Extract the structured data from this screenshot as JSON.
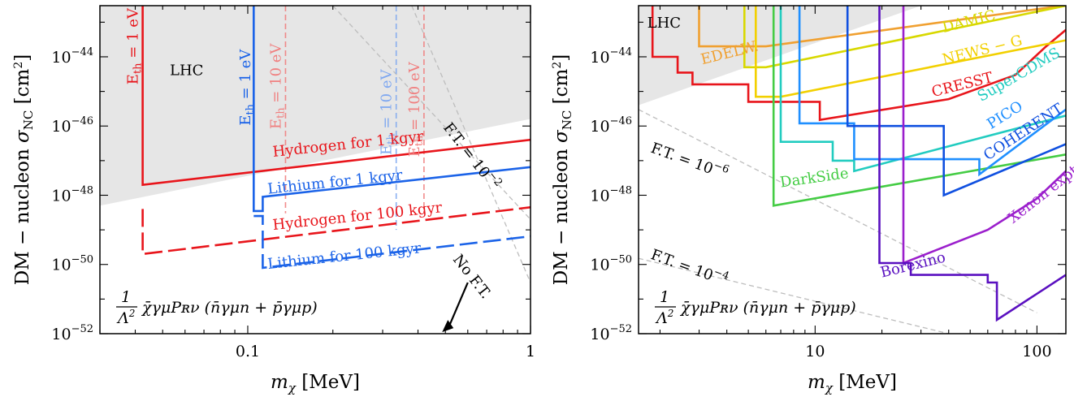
{
  "chart_data": [
    {
      "type": "line",
      "xscale": "log",
      "yscale": "log",
      "xlim": [
        0.03,
        1
      ],
      "ylim": [
        1e-52,
        3e-43
      ],
      "xlabel": "m_χ [MeV]",
      "ylabel": "DM − nucleon σ_NC [cm²]",
      "xticks": [
        {
          "v": 0.1,
          "label": "0.1"
        },
        {
          "v": 1,
          "label": "1"
        }
      ],
      "yticks": [
        {
          "v": 1e-44,
          "base": "10",
          "exp": "−44"
        },
        {
          "v": 1e-46,
          "base": "10",
          "exp": "−46"
        },
        {
          "v": 1e-48,
          "base": "10",
          "exp": "−48"
        },
        {
          "v": 1e-50,
          "base": "10",
          "exp": "−50"
        },
        {
          "v": 1e-52,
          "base": "10",
          "exp": "−52"
        }
      ],
      "formula": "1/Λ² χ̄γμPRν(n̄γμn + p̄γμp)",
      "excluded_region": {
        "label": "LHC",
        "points": [
          [
            0.03,
            3e-43
          ],
          [
            1,
            3e-43
          ],
          [
            1,
            1.6e-46
          ],
          [
            0.03,
            5e-49
          ]
        ]
      },
      "series": [
        {
          "name": "Hydrogen for 1 kgyr",
          "color": "#e8151b",
          "style": "solid",
          "points": [
            [
              0.0425,
              3e-43
            ],
            [
              0.0425,
              2e-48
            ],
            [
              1,
              4e-47
            ]
          ]
        },
        {
          "name": "Lithium for 1 kgyr",
          "color": "#1b63e8",
          "style": "solid",
          "points": [
            [
              0.105,
              3e-43
            ],
            [
              0.105,
              3.5e-49
            ],
            [
              0.113,
              3.5e-49
            ],
            [
              0.113,
              9e-49
            ],
            [
              1,
              6.5e-48
            ]
          ]
        },
        {
          "name": "Hydrogen for 100 kgyr",
          "color": "#e8151b",
          "style": "dashed",
          "points": [
            [
              0.0425,
              4e-49
            ],
            [
              0.0425,
              2e-50
            ],
            [
              1,
              4.5e-49
            ]
          ]
        },
        {
          "name": "Lithium for 100 kgyr",
          "color": "#1b63e8",
          "style": "dashed",
          "points": [
            [
              0.105,
              2.5e-49
            ],
            [
              0.113,
              2.5e-49
            ],
            [
              0.113,
              8e-51
            ],
            [
              1,
              6.5e-50
            ]
          ]
        }
      ],
      "threshold_lines": [
        {
          "label_base": "E",
          "label_sub": "th",
          "label_val": " = 1 eV",
          "x": 0.0425,
          "color": "#e8151b",
          "y_label": 2e-44
        },
        {
          "label_base": "E",
          "label_sub": "th",
          "label_val": " = 1 eV",
          "x": 0.106,
          "color": "#1b63e8",
          "y_label": 1.3e-45
        },
        {
          "label_base": "E",
          "label_sub": "th",
          "label_val": " = 10 eV",
          "x": 0.136,
          "color": "#f08080",
          "y_label": 1.4e-45
        },
        {
          "label_base": "E",
          "label_sub": "th",
          "label_val": " = 10 eV",
          "x": 0.335,
          "color": "#7fa8f0",
          "y_label": 2.5e-46
        },
        {
          "label_base": "E",
          "label_sub": "th",
          "label_val": " = 100 eV",
          "x": 0.42,
          "color": "#f08080",
          "y_label": 3e-46
        }
      ],
      "ft_lines": [
        {
          "label": "F.T. = 10",
          "exp": "−2",
          "points": [
            [
              0.2,
              3e-43
            ],
            [
              1,
              2e-49
            ]
          ]
        },
        {
          "label": "No F.T.",
          "exp": "",
          "points": [
            [
              0.38,
              3e-43
            ],
            [
              1,
              3e-51
            ]
          ]
        }
      ]
    },
    {
      "type": "line",
      "xscale": "log",
      "yscale": "log",
      "xlim": [
        1.6,
        135
      ],
      "ylim": [
        1e-52,
        3e-43
      ],
      "xlabel": "m_χ [MeV]",
      "ylabel": "DM − nucleon σ_NC [cm²]",
      "xticks": [
        {
          "v": 10,
          "label": "10"
        },
        {
          "v": 100,
          "label": "100"
        }
      ],
      "yticks": [
        {
          "v": 1e-44,
          "base": "10",
          "exp": "−44"
        },
        {
          "v": 1e-46,
          "base": "10",
          "exp": "−46"
        },
        {
          "v": 1e-48,
          "base": "10",
          "exp": "−48"
        },
        {
          "v": 1e-50,
          "base": "10",
          "exp": "−50"
        },
        {
          "v": 1e-52,
          "base": "10",
          "exp": "−52"
        }
      ],
      "formula": "1/Λ² χ̄γμPRν(n̄γμn + p̄γμp)",
      "excluded_region": {
        "label": "LHC",
        "points": [
          [
            1.6,
            3e-43
          ],
          [
            30,
            3e-43
          ],
          [
            1.6,
            4e-46
          ]
        ]
      },
      "ft_lines": [
        {
          "label": "F.T. = 10",
          "exp": "−6",
          "points": [
            [
              1.6,
              3e-46
            ],
            [
              100,
              4e-52
            ]
          ]
        },
        {
          "label": "F.T. = 10",
          "exp": "−4",
          "points": [
            [
              1.6,
              1.5e-50
            ],
            [
              40,
              1e-52
            ]
          ]
        }
      ],
      "series": [
        {
          "name": "CRESST",
          "color": "#e8151b",
          "points": [
            [
              1.85,
              3e-43
            ],
            [
              1.85,
              1e-44
            ],
            [
              2.4,
              1e-44
            ],
            [
              2.4,
              3.5e-45
            ],
            [
              2.8,
              3.5e-45
            ],
            [
              2.8,
              1.6e-45
            ],
            [
              5,
              1.6e-45
            ],
            [
              5,
              5e-46
            ],
            [
              10.5,
              5e-46
            ],
            [
              10.5,
              1.5e-46
            ],
            [
              40,
              6e-46
            ],
            [
              80,
              3e-45
            ],
            [
              110,
              2e-44
            ],
            [
              135,
              6e-44
            ]
          ]
        },
        {
          "name": "EDELW.",
          "color": "#f0a030",
          "points": [
            [
              3,
              3e-43
            ],
            [
              3,
              2e-44
            ],
            [
              6,
              2e-44
            ],
            [
              130,
              3e-43
            ]
          ]
        },
        {
          "name": "DAMIC",
          "color": "#d8d800",
          "points": [
            [
              4.8,
              3e-43
            ],
            [
              4.8,
              5e-45
            ],
            [
              6,
              5e-45
            ],
            [
              135,
              3e-43
            ]
          ]
        },
        {
          "name": "NEWS − G",
          "color": "#f2d000",
          "points": [
            [
              5.4,
              3e-43
            ],
            [
              5.4,
              7e-46
            ],
            [
              7,
              7e-46
            ],
            [
              135,
              3e-44
            ]
          ]
        },
        {
          "name": "DarkSide",
          "color": "#44cc44",
          "points": [
            [
              6.5,
              3e-43
            ],
            [
              6.5,
              5e-49
            ],
            [
              135,
              1.5e-47
            ]
          ]
        },
        {
          "name": "SuperCDMS",
          "color": "#22ccc0",
          "points": [
            [
              7,
              3e-43
            ],
            [
              7,
              3.5e-47
            ],
            [
              12,
              3.5e-47
            ],
            [
              12,
              1e-47
            ],
            [
              15,
              1e-47
            ],
            [
              15,
              5e-48
            ],
            [
              135,
              2e-46
            ]
          ]
        },
        {
          "name": "PICO",
          "color": "#1f8fff",
          "points": [
            [
              8.5,
              3e-43
            ],
            [
              8.5,
              1.2e-46
            ],
            [
              15,
              1.2e-46
            ],
            [
              15,
              1.1e-47
            ],
            [
              55,
              1.1e-47
            ],
            [
              55,
              4e-48
            ],
            [
              135,
              3e-46
            ]
          ]
        },
        {
          "name": "COHERENT",
          "color": "#1050e0",
          "points": [
            [
              14,
              3e-43
            ],
            [
              14,
              1e-46
            ],
            [
              38,
              1e-46
            ],
            [
              38,
              1e-48
            ],
            [
              135,
              3e-47
            ]
          ]
        },
        {
          "name": "Xenon expts",
          "color": "#9b1fcc",
          "points": [
            [
              25,
              3e-43
            ],
            [
              25,
              1.1e-50
            ],
            [
              60,
              1e-49
            ],
            [
              100,
              8e-49
            ],
            [
              135,
              5e-48
            ]
          ]
        },
        {
          "name": "Borexino",
          "color": "#5a10c0",
          "points": [
            [
              19.5,
              3e-43
            ],
            [
              19.5,
              1.1e-50
            ],
            [
              27,
              1.1e-50
            ],
            [
              27,
              5e-51
            ],
            [
              60,
              5e-51
            ],
            [
              60,
              3e-51
            ],
            [
              66,
              3e-51
            ],
            [
              66,
              2.5e-52
            ],
            [
              135,
              5e-51
            ]
          ]
        }
      ]
    }
  ]
}
